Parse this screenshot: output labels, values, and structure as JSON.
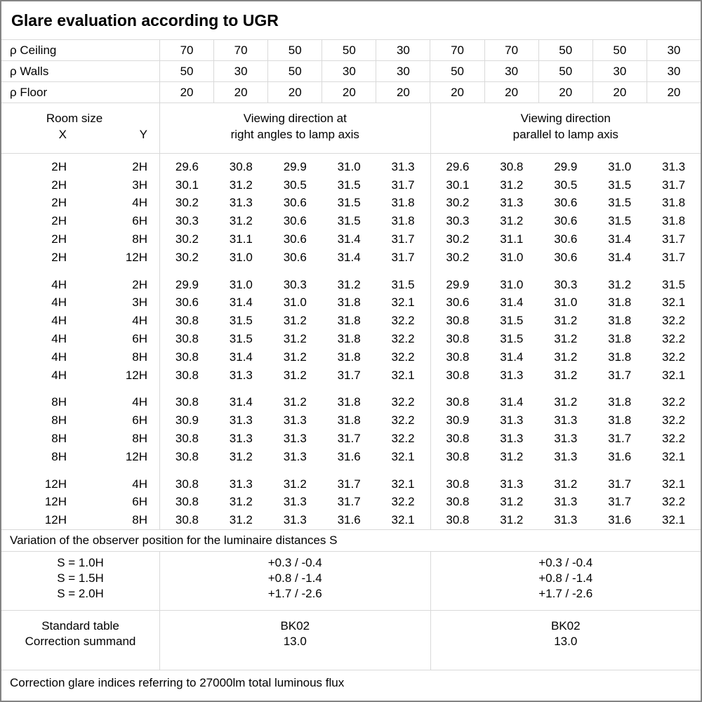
{
  "title": "Glare evaluation according to UGR",
  "reflectance_rows": [
    {
      "label": "ρ Ceiling",
      "values": [
        "70",
        "70",
        "50",
        "50",
        "30",
        "70",
        "70",
        "50",
        "50",
        "30"
      ]
    },
    {
      "label": "ρ Walls",
      "values": [
        "50",
        "30",
        "50",
        "30",
        "30",
        "50",
        "30",
        "50",
        "30",
        "30"
      ]
    },
    {
      "label": "ρ Floor",
      "values": [
        "20",
        "20",
        "20",
        "20",
        "20",
        "20",
        "20",
        "20",
        "20",
        "20"
      ]
    }
  ],
  "header": {
    "room_size": "Room size",
    "x": "X",
    "y": "Y",
    "right_angles_line1": "Viewing direction at",
    "right_angles_line2": "right angles to lamp axis",
    "parallel_line1": "Viewing direction",
    "parallel_line2": "parallel to lamp axis"
  },
  "ugr_groups": [
    {
      "rows": [
        {
          "x": "2H",
          "y": "2H",
          "right_angles": [
            "29.6",
            "30.8",
            "29.9",
            "31.0",
            "31.3"
          ],
          "parallel": [
            "29.6",
            "30.8",
            "29.9",
            "31.0",
            "31.3"
          ]
        },
        {
          "x": "2H",
          "y": "3H",
          "right_angles": [
            "30.1",
            "31.2",
            "30.5",
            "31.5",
            "31.7"
          ],
          "parallel": [
            "30.1",
            "31.2",
            "30.5",
            "31.5",
            "31.7"
          ]
        },
        {
          "x": "2H",
          "y": "4H",
          "right_angles": [
            "30.2",
            "31.3",
            "30.6",
            "31.5",
            "31.8"
          ],
          "parallel": [
            "30.2",
            "31.3",
            "30.6",
            "31.5",
            "31.8"
          ]
        },
        {
          "x": "2H",
          "y": "6H",
          "right_angles": [
            "30.3",
            "31.2",
            "30.6",
            "31.5",
            "31.8"
          ],
          "parallel": [
            "30.3",
            "31.2",
            "30.6",
            "31.5",
            "31.8"
          ]
        },
        {
          "x": "2H",
          "y": "8H",
          "right_angles": [
            "30.2",
            "31.1",
            "30.6",
            "31.4",
            "31.7"
          ],
          "parallel": [
            "30.2",
            "31.1",
            "30.6",
            "31.4",
            "31.7"
          ]
        },
        {
          "x": "2H",
          "y": "12H",
          "right_angles": [
            "30.2",
            "31.0",
            "30.6",
            "31.4",
            "31.7"
          ],
          "parallel": [
            "30.2",
            "31.0",
            "30.6",
            "31.4",
            "31.7"
          ]
        }
      ]
    },
    {
      "rows": [
        {
          "x": "4H",
          "y": "2H",
          "right_angles": [
            "29.9",
            "31.0",
            "30.3",
            "31.2",
            "31.5"
          ],
          "parallel": [
            "29.9",
            "31.0",
            "30.3",
            "31.2",
            "31.5"
          ]
        },
        {
          "x": "4H",
          "y": "3H",
          "right_angles": [
            "30.6",
            "31.4",
            "31.0",
            "31.8",
            "32.1"
          ],
          "parallel": [
            "30.6",
            "31.4",
            "31.0",
            "31.8",
            "32.1"
          ]
        },
        {
          "x": "4H",
          "y": "4H",
          "right_angles": [
            "30.8",
            "31.5",
            "31.2",
            "31.8",
            "32.2"
          ],
          "parallel": [
            "30.8",
            "31.5",
            "31.2",
            "31.8",
            "32.2"
          ]
        },
        {
          "x": "4H",
          "y": "6H",
          "right_angles": [
            "30.8",
            "31.5",
            "31.2",
            "31.8",
            "32.2"
          ],
          "parallel": [
            "30.8",
            "31.5",
            "31.2",
            "31.8",
            "32.2"
          ]
        },
        {
          "x": "4H",
          "y": "8H",
          "right_angles": [
            "30.8",
            "31.4",
            "31.2",
            "31.8",
            "32.2"
          ],
          "parallel": [
            "30.8",
            "31.4",
            "31.2",
            "31.8",
            "32.2"
          ]
        },
        {
          "x": "4H",
          "y": "12H",
          "right_angles": [
            "30.8",
            "31.3",
            "31.2",
            "31.7",
            "32.1"
          ],
          "parallel": [
            "30.8",
            "31.3",
            "31.2",
            "31.7",
            "32.1"
          ]
        }
      ]
    },
    {
      "rows": [
        {
          "x": "8H",
          "y": "4H",
          "right_angles": [
            "30.8",
            "31.4",
            "31.2",
            "31.8",
            "32.2"
          ],
          "parallel": [
            "30.8",
            "31.4",
            "31.2",
            "31.8",
            "32.2"
          ]
        },
        {
          "x": "8H",
          "y": "6H",
          "right_angles": [
            "30.9",
            "31.3",
            "31.3",
            "31.8",
            "32.2"
          ],
          "parallel": [
            "30.9",
            "31.3",
            "31.3",
            "31.8",
            "32.2"
          ]
        },
        {
          "x": "8H",
          "y": "8H",
          "right_angles": [
            "30.8",
            "31.3",
            "31.3",
            "31.7",
            "32.2"
          ],
          "parallel": [
            "30.8",
            "31.3",
            "31.3",
            "31.7",
            "32.2"
          ]
        },
        {
          "x": "8H",
          "y": "12H",
          "right_angles": [
            "30.8",
            "31.2",
            "31.3",
            "31.6",
            "32.1"
          ],
          "parallel": [
            "30.8",
            "31.2",
            "31.3",
            "31.6",
            "32.1"
          ]
        }
      ]
    },
    {
      "rows": [
        {
          "x": "12H",
          "y": "4H",
          "right_angles": [
            "30.8",
            "31.3",
            "31.2",
            "31.7",
            "32.1"
          ],
          "parallel": [
            "30.8",
            "31.3",
            "31.2",
            "31.7",
            "32.1"
          ]
        },
        {
          "x": "12H",
          "y": "6H",
          "right_angles": [
            "30.8",
            "31.2",
            "31.3",
            "31.7",
            "32.2"
          ],
          "parallel": [
            "30.8",
            "31.2",
            "31.3",
            "31.7",
            "32.2"
          ]
        },
        {
          "x": "12H",
          "y": "8H",
          "right_angles": [
            "30.8",
            "31.2",
            "31.3",
            "31.6",
            "32.1"
          ],
          "parallel": [
            "30.8",
            "31.2",
            "31.3",
            "31.6",
            "32.1"
          ]
        }
      ]
    }
  ],
  "observer_variation": {
    "title": "Variation of the observer position for the luminaire distances S",
    "rows": [
      {
        "label": "S = 1.0H",
        "right_angles": "+0.3 / -0.4",
        "parallel": "+0.3 / -0.4"
      },
      {
        "label": "S = 1.5H",
        "right_angles": "+0.8 / -1.4",
        "parallel": "+0.8 / -1.4"
      },
      {
        "label": "S = 2.0H",
        "right_angles": "+1.7 / -2.6",
        "parallel": "+1.7 / -2.6"
      }
    ]
  },
  "summary": {
    "rows": [
      {
        "label": "Standard table",
        "right_angles": "BK02",
        "parallel": "BK02"
      },
      {
        "label": "Correction summand",
        "right_angles": "13.0",
        "parallel": "13.0"
      }
    ]
  },
  "footnote": "Correction glare indices referring to 27000lm total luminous flux",
  "colors": {
    "grid_line": "#d9d9d9",
    "outer_border": "#848484",
    "text": "#000000",
    "background": "#ffffff"
  }
}
